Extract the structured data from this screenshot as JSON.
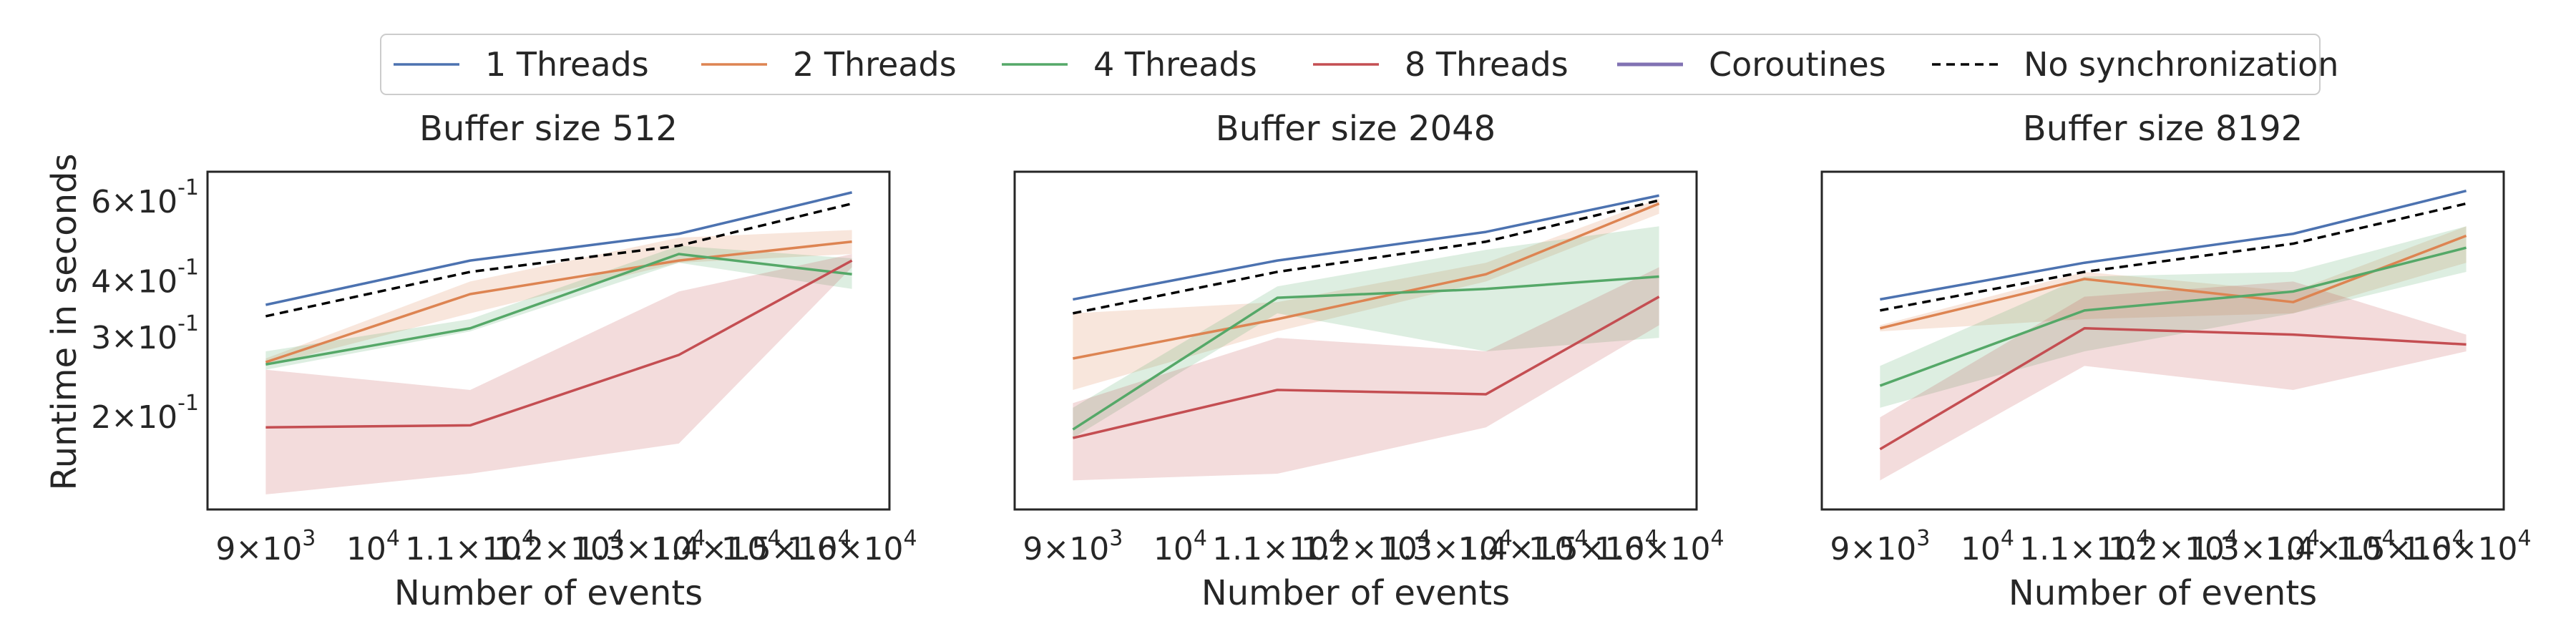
{
  "colors": {
    "1 Threads": "#4c72b0",
    "2 Threads": "#dd8452",
    "4 Threads": "#55a868",
    "8 Threads": "#c44e52",
    "Coroutines": "#8172b3",
    "No synchronization": "#000000"
  },
  "chart_data": {
    "type": "line",
    "legend": {
      "placement": "top-center",
      "entries": [
        {
          "label": "1 Threads",
          "style": "solid"
        },
        {
          "label": "2 Threads",
          "style": "solid"
        },
        {
          "label": "4 Threads",
          "style": "solid"
        },
        {
          "label": "8 Threads",
          "style": "solid"
        },
        {
          "label": "Coroutines",
          "style": "solid"
        },
        {
          "label": "No synchronization",
          "style": "dashed"
        }
      ]
    },
    "xlabel": "Number of events",
    "ylabel": "Runtime in seconds",
    "xscale": "log",
    "yscale": "log",
    "xlim": [
      8500,
      16600
    ],
    "ylim": [
      0.125,
      0.7
    ],
    "grid": false,
    "x": [
      9000,
      11000,
      13500,
      16000
    ],
    "xticks": [
      {
        "mantissa": "9",
        "exp": "3",
        "value": 9000
      },
      {
        "mantissa": "",
        "exp": "4",
        "value": 10000
      },
      {
        "mantissa": "1.1",
        "exp": "4",
        "value": 11000
      },
      {
        "mantissa": "1.2",
        "exp": "4",
        "value": 12000
      },
      {
        "mantissa": "1.3",
        "exp": "4",
        "value": 13000
      },
      {
        "mantissa": "1.4",
        "exp": "4",
        "value": 14000
      },
      {
        "mantissa": "1.5",
        "exp": "4",
        "value": 15000
      },
      {
        "mantissa": "1.6",
        "exp": "4",
        "value": 16000
      }
    ],
    "yticks": [
      {
        "mantissa": "2",
        "exp": "-1",
        "value": 0.2
      },
      {
        "mantissa": "3",
        "exp": "-1",
        "value": 0.3
      },
      {
        "mantissa": "4",
        "exp": "-1",
        "value": 0.4
      },
      {
        "mantissa": "6",
        "exp": "-1",
        "value": 0.6
      }
    ],
    "panels": [
      {
        "title": "Buffer size 512",
        "series": [
          {
            "name": "1 Threads",
            "values": [
              0.355,
              0.445,
              0.51,
              0.63
            ]
          },
          {
            "name": "2 Threads",
            "values": [
              0.265,
              0.375,
              0.445,
              0.49
            ],
            "lower": [
              0.26,
              0.34,
              0.44,
              0.46
            ],
            "upper": [
              0.27,
              0.4,
              0.5,
              0.52
            ]
          },
          {
            "name": "4 Threads",
            "values": [
              0.262,
              0.315,
              0.46,
              0.415
            ],
            "lower": [
              0.255,
              0.31,
              0.44,
              0.385
            ],
            "upper": [
              0.28,
              0.33,
              0.48,
              0.45
            ]
          },
          {
            "name": "8 Threads",
            "values": [
              0.19,
              0.192,
              0.275,
              0.445
            ],
            "lower": [
              0.135,
              0.15,
              0.175,
              0.43
            ],
            "upper": [
              0.255,
              0.23,
              0.38,
              0.46
            ]
          },
          {
            "name": "No synchronization",
            "values": [
              0.335,
              0.42,
              0.48,
              0.595
            ]
          }
        ]
      },
      {
        "title": "Buffer size 2048",
        "series": [
          {
            "name": "1 Threads",
            "values": [
              0.365,
              0.445,
              0.515,
              0.62
            ]
          },
          {
            "name": "2 Threads",
            "values": [
              0.27,
              0.33,
              0.415,
              0.595
            ],
            "lower": [
              0.23,
              0.31,
              0.4,
              0.565
            ],
            "upper": [
              0.34,
              0.36,
              0.44,
              0.61
            ]
          },
          {
            "name": "4 Threads",
            "values": [
              0.188,
              0.368,
              0.385,
              0.41
            ],
            "lower": [
              0.18,
              0.34,
              0.28,
              0.3
            ],
            "upper": [
              0.21,
              0.39,
              0.47,
              0.53
            ]
          },
          {
            "name": "8 Threads",
            "values": [
              0.18,
              0.23,
              0.225,
              0.37
            ],
            "lower": [
              0.145,
              0.15,
              0.19,
              0.32
            ],
            "upper": [
              0.215,
              0.3,
              0.28,
              0.43
            ]
          },
          {
            "name": "No synchronization",
            "values": [
              0.34,
              0.42,
              0.49,
              0.605
            ]
          }
        ]
      },
      {
        "title": "Buffer size 8192",
        "series": [
          {
            "name": "1 Threads",
            "values": [
              0.365,
              0.44,
              0.51,
              0.635
            ]
          },
          {
            "name": "2 Threads",
            "values": [
              0.315,
              0.405,
              0.36,
              0.505
            ],
            "lower": [
              0.31,
              0.33,
              0.34,
              0.44
            ],
            "upper": [
              0.32,
              0.42,
              0.38,
              0.53
            ]
          },
          {
            "name": "4 Threads",
            "values": [
              0.235,
              0.345,
              0.38,
              0.475
            ],
            "lower": [
              0.21,
              0.28,
              0.34,
              0.42
            ],
            "upper": [
              0.26,
              0.41,
              0.42,
              0.53
            ]
          },
          {
            "name": "8 Threads",
            "values": [
              0.17,
              0.315,
              0.305,
              0.29
            ],
            "lower": [
              0.145,
              0.26,
              0.23,
              0.28
            ],
            "upper": [
              0.2,
              0.37,
              0.4,
              0.305
            ]
          },
          {
            "name": "No synchronization",
            "values": [
              0.345,
              0.42,
              0.485,
              0.595
            ]
          }
        ]
      }
    ]
  }
}
